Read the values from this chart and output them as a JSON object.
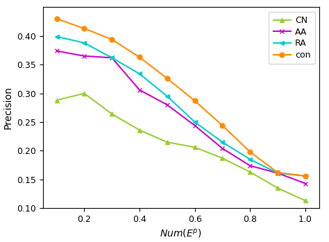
{
  "x": [
    0.1,
    0.2,
    0.3,
    0.4,
    0.5,
    0.6,
    0.7,
    0.8,
    0.9,
    1.0
  ],
  "CN": [
    0.288,
    0.3,
    0.264,
    0.236,
    0.215,
    0.206,
    0.187,
    0.163,
    0.135,
    0.113
  ],
  "AA": [
    0.374,
    0.365,
    0.362,
    0.306,
    0.28,
    0.244,
    0.204,
    0.174,
    0.161,
    0.143
  ],
  "RA": [
    0.399,
    0.388,
    0.362,
    0.334,
    0.295,
    0.25,
    0.215,
    0.185,
    0.161,
    0.156
  ],
  "con": [
    0.43,
    0.413,
    0.394,
    0.363,
    0.326,
    0.287,
    0.244,
    0.198,
    0.162,
    0.156
  ],
  "CN_color": "#9acd32",
  "AA_color": "#cc00cc",
  "RA_color": "#00cdcd",
  "con_color": "#ff8c00",
  "ylabel": "Precision",
  "ylim": [
    0.1,
    0.45
  ],
  "xlim": [
    0.05,
    1.05
  ],
  "xticks": [
    0.2,
    0.4,
    0.6,
    0.8,
    1.0
  ],
  "yticks": [
    0.1,
    0.15,
    0.2,
    0.25,
    0.3,
    0.35,
    0.4
  ],
  "legend_labels": [
    "CN",
    "AA",
    "RA",
    "con"
  ],
  "figsize": [
    4.74,
    3.49
  ],
  "dpi": 100
}
